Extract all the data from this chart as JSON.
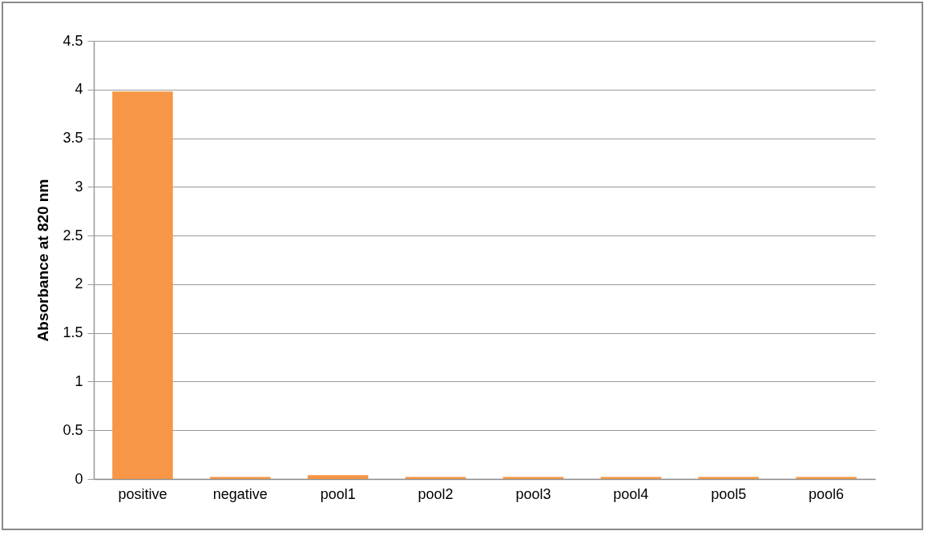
{
  "chart_data": {
    "type": "bar",
    "ylabel": "Absorbance at 820 nm",
    "categories": [
      "positive",
      "negative",
      "pool1",
      "pool2",
      "pool3",
      "pool4",
      "pool5",
      "pool6"
    ],
    "values": [
      3.98,
      0.02,
      0.04,
      0.02,
      0.02,
      0.02,
      0.02,
      0.02
    ],
    "color": "#f79646",
    "ylim": [
      0,
      4.5
    ],
    "yticks": [
      0,
      0.5,
      1,
      1.5,
      2,
      2.5,
      3,
      3.5,
      4,
      4.5
    ],
    "grid": "y"
  }
}
